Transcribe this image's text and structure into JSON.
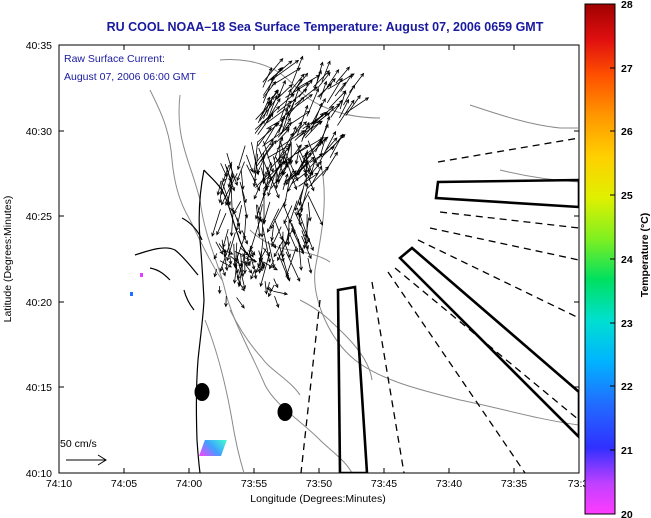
{
  "title": "RU COOL  NOAA–18  Sea Surface Temperature:  August 07, 2006 0659 GMT",
  "annotation": {
    "line1": "Raw Surface Current:",
    "line2": "August 07, 2006 06:00 GMT"
  },
  "scale_label": "50 cm/s",
  "axes": {
    "xlabel": "Longitude (Degrees:Minutes)",
    "ylabel": "Latitude (Degrees:Minutes)",
    "xticks": [
      "74:10",
      "74:05",
      "74:00",
      "73:55",
      "73:50",
      "73:45",
      "73:40",
      "73:35",
      "73:3"
    ],
    "yticks": [
      "40:35",
      "40:30",
      "40:25",
      "40:20",
      "40:15",
      "40:10"
    ]
  },
  "colorbar": {
    "label": "Temperature (°C)",
    "ticks": [
      "28",
      "27",
      "26",
      "25",
      "24",
      "23",
      "22",
      "21",
      "20"
    ],
    "min": 20,
    "max": 28
  },
  "colors": {
    "title": "#1a1aa0",
    "frame": "#000000",
    "contour": "#8a8a8a",
    "land_outline": "#000000"
  }
}
